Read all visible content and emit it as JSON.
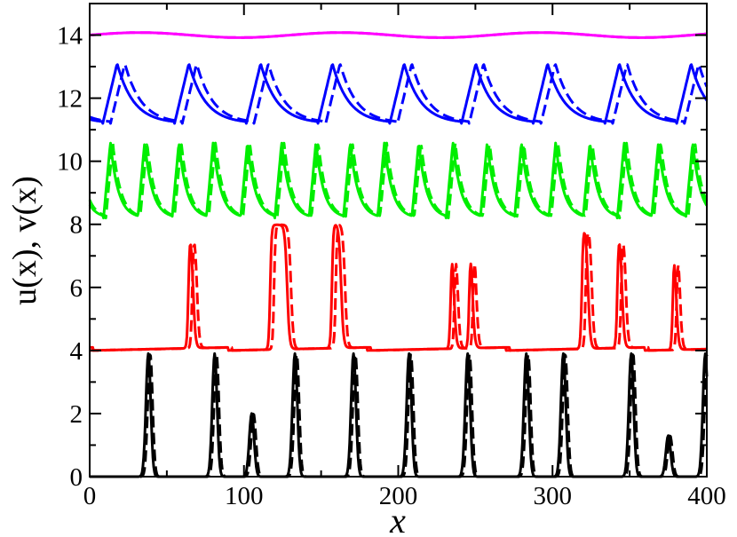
{
  "chart_data": {
    "type": "line",
    "xlabel": "x",
    "ylabel": "u(x), v(x)",
    "xlim": [
      0,
      400
    ],
    "ylim": [
      0,
      15
    ],
    "x_ticks": [
      0,
      100,
      200,
      300,
      400
    ],
    "x_minor_ticks": [
      50,
      150,
      250,
      350
    ],
    "y_ticks": [
      0,
      2,
      4,
      6,
      8,
      10,
      12,
      14
    ],
    "y_minor_ticks": [
      1,
      3,
      5,
      7,
      9,
      11,
      13
    ],
    "grid": false,
    "legend": "none",
    "line_styles": [
      "solid",
      "dashed"
    ],
    "series": [
      {
        "color": "#000000",
        "kind": "pulses",
        "baseline": 0.0,
        "width": 2.2,
        "dash_lag": 1.2,
        "pulses": [
          [
            38,
            3.9
          ],
          [
            81,
            3.9
          ],
          [
            105,
            2.0
          ],
          [
            133,
            3.9
          ],
          [
            171,
            3.9
          ],
          [
            207,
            3.9
          ],
          [
            245,
            3.9
          ],
          [
            283,
            3.9
          ],
          [
            307,
            3.9
          ],
          [
            351,
            3.9
          ],
          [
            375,
            1.3
          ],
          [
            399,
            3.9
          ]
        ]
      },
      {
        "color": "#ff0000",
        "kind": "plateaus",
        "baseline": 4.0,
        "dash_lag": 2.5,
        "plateaus": [
          [
            64,
            7.9,
            3
          ],
          [
            117,
            7.95,
            11
          ],
          [
            157,
            7.95,
            6
          ],
          [
            234,
            7.9,
            2
          ],
          [
            246,
            7.9,
            2
          ],
          [
            319,
            7.95,
            4
          ],
          [
            342,
            7.9,
            3
          ],
          [
            378,
            7.9,
            2
          ]
        ]
      },
      {
        "color": "#00ee00",
        "kind": "sawtooth",
        "low": 8.2,
        "high": 10.6,
        "period": 22.2,
        "phase": 9,
        "dash_lag": 1.5
      },
      {
        "color": "#0000ff",
        "kind": "sawtooth",
        "low": 11.2,
        "high": 13.1,
        "period": 46.5,
        "phase": 55,
        "dash_lag": 5
      },
      {
        "color": "#ff00ff",
        "kind": "wave",
        "mean": 14.0,
        "amplitude": 0.08,
        "period": 130
      }
    ]
  }
}
